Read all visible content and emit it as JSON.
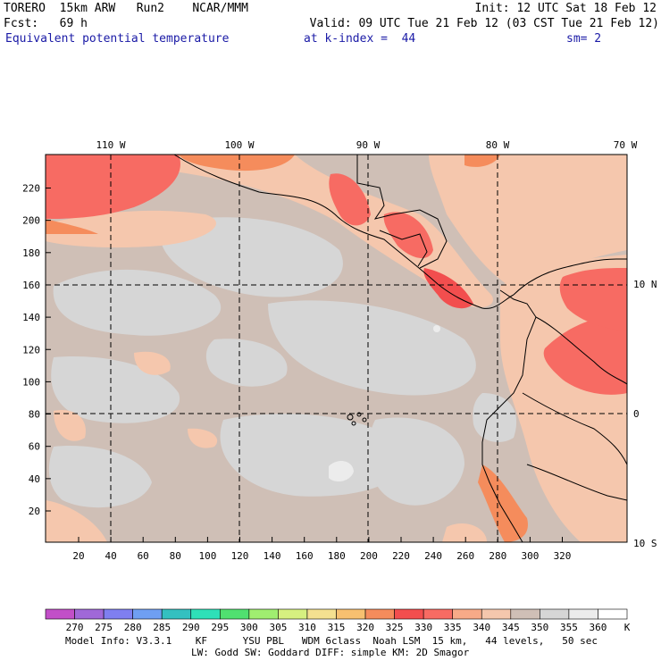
{
  "header": {
    "line1_left": "TORERO  15km ARW   Run2    NCAR/MMM",
    "line1_right": "Init: 12 UTC Sat 18 Feb 12",
    "line2_left": "Fcst:   69 h",
    "line2_right": "Valid: 09 UTC Tue 21 Feb 12 (03 CST Tue 21 Feb 12)",
    "field_name": "Equivalent potential temperature",
    "level": "at k-index =  44",
    "smoothing": "sm= 2"
  },
  "map": {
    "x_ticks": [
      "20",
      "40",
      "60",
      "80",
      "100",
      "120",
      "140",
      "160",
      "180",
      "200",
      "220",
      "240",
      "260",
      "280",
      "300",
      "320"
    ],
    "y_ticks": [
      "20",
      "40",
      "60",
      "80",
      "100",
      "120",
      "140",
      "160",
      "180",
      "200",
      "220"
    ],
    "lon_labels": [
      "110 W",
      "100 W",
      "90 W",
      "80 W",
      "70 W"
    ],
    "lat_labels": [
      "10 N",
      "0",
      "10 S"
    ]
  },
  "colorbar": {
    "values": [
      "270",
      "275",
      "280",
      "285",
      "290",
      "295",
      "300",
      "305",
      "310",
      "315",
      "320",
      "325",
      "330",
      "335",
      "340",
      "345",
      "350",
      "355",
      "360"
    ],
    "unit": "K",
    "colors": [
      "#c24fc8",
      "#a068d8",
      "#7f7ff0",
      "#6f9ff2",
      "#34c0c0",
      "#2ee0b8",
      "#50e070",
      "#a0ee70",
      "#d6f080",
      "#f4e090",
      "#f7c070",
      "#f58c5c",
      "#f24e4e",
      "#f76b63",
      "#f7aa88",
      "#f5c7ad",
      "#cfbfb6",
      "#d6d6d6",
      "#ececec",
      "#ffffff"
    ]
  },
  "footer": {
    "line1": "Model Info: V3.3.1    KF      YSU PBL   WDM 6class  Noah LSM  15 km,   44 levels,   50 sec",
    "line2": "LW: Godd SW: Goddard DIFF: simple KM: 2D Smagor"
  }
}
